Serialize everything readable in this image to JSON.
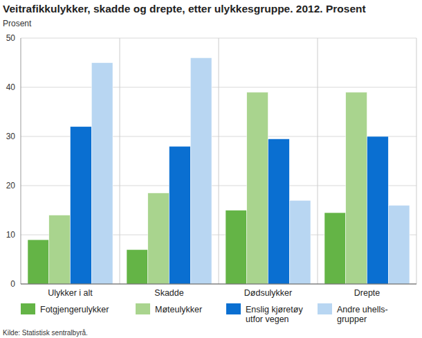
{
  "chart_data": {
    "type": "bar",
    "title": "Veitrafikkulykker, skadde og drepte, etter ulykkesgruppe. 2012. Prosent",
    "y_label": "Prosent",
    "source": "Kilde: Statistisk sentralbyrå.",
    "categories": [
      "Ulykker i alt",
      "Skadde",
      "Dødsulykker",
      "Drepte"
    ],
    "series": [
      {
        "name": "Fotgjengerulykker",
        "color": "#64b446",
        "values": [
          9,
          7,
          15,
          14.5
        ]
      },
      {
        "name": "Møteulykker",
        "color": "#a9d48e",
        "values": [
          14,
          18.5,
          39,
          39
        ]
      },
      {
        "name": "Enslig kjøretøy utfor vegen",
        "color": "#0a6fd1",
        "values": [
          32,
          28,
          29.5,
          30
        ]
      },
      {
        "name": "Andre uhells-grupper",
        "color": "#b8d6f2",
        "values": [
          45,
          46,
          17,
          16
        ]
      }
    ],
    "ylim": [
      0,
      50
    ],
    "yticks": [
      0,
      10,
      20,
      30,
      40,
      50
    ],
    "grid": true,
    "legend": "bottom"
  }
}
